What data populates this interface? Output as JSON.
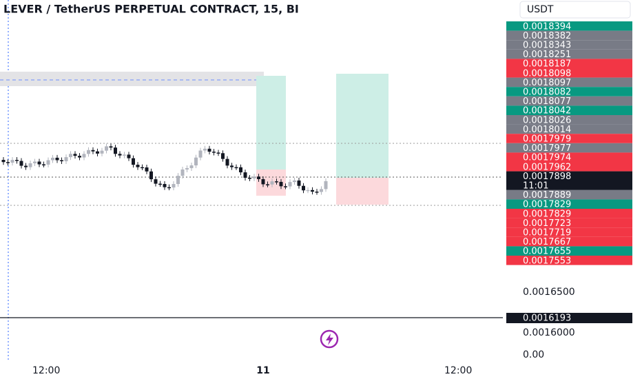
{
  "header": {
    "title": "LEVER / TetherUS PERPETUAL CONTRACT, 15, BI",
    "currency": "USDT"
  },
  "price_labels": [
    {
      "text": "0.0018394",
      "color": "#089981"
    },
    {
      "text": "0.0018382",
      "color": "#787b86"
    },
    {
      "text": "0.0018343",
      "color": "#787b86"
    },
    {
      "text": "0.0018251",
      "color": "#787b86"
    },
    {
      "text": "0.0018187",
      "color": "#f23645"
    },
    {
      "text": "0.0018098",
      "color": "#f23645"
    },
    {
      "text": "0.0018097",
      "color": "#787b86"
    },
    {
      "text": "0.0018082",
      "color": "#089981"
    },
    {
      "text": "0.0018077",
      "color": "#787b86"
    },
    {
      "text": "0.0018042",
      "color": "#089981"
    },
    {
      "text": "0.0018026",
      "color": "#787b86"
    },
    {
      "text": "0.0018014",
      "color": "#787b86"
    },
    {
      "text": "0.0017979",
      "color": "#f23645"
    },
    {
      "text": "0.0017977",
      "color": "#787b86"
    },
    {
      "text": "0.0017974",
      "color": "#f23645"
    },
    {
      "text": "0.0017962",
      "color": "#f23645"
    }
  ],
  "current_price": {
    "price": "0.0017898",
    "countdown": "11:01"
  },
  "price_labels_lower": [
    {
      "text": "0.0017889",
      "color": "#787b86"
    },
    {
      "text": "0.0017829",
      "color": "#089981"
    },
    {
      "text": "0.0017829",
      "color": "#f23645"
    },
    {
      "text": "0.0017723",
      "color": "#f23645"
    },
    {
      "text": "0.0017719",
      "color": "#f23645"
    },
    {
      "text": "0.0017667",
      "color": "#f23645"
    },
    {
      "text": "0.0017655",
      "color": "#089981"
    },
    {
      "text": "0.0017553",
      "color": "#f23645"
    }
  ],
  "axis_labels": [
    "0.0016500",
    "0.0016000",
    "0.00"
  ],
  "crosshair_price": "0.0016193",
  "time_labels": [
    "12:00",
    "11",
    "12:00"
  ]
}
